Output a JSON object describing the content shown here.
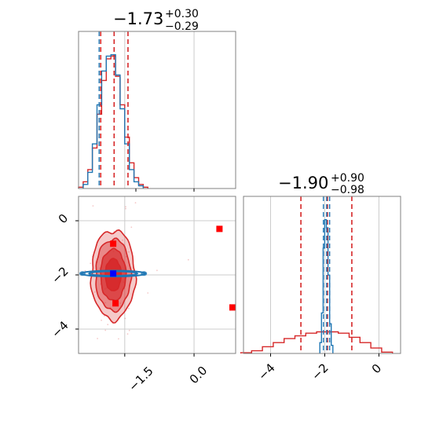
{
  "colors": {
    "posterior_a": "#d62728",
    "posterior_b": "#1f77b4",
    "truth_marker": "#ff0000",
    "mean_marker": "#0000ff",
    "grid": "#cccccc",
    "frame": "#808080"
  },
  "chart_data": [
    {
      "panel": "marginal-p1",
      "type": "histogram",
      "title_main": "−1.73",
      "title_sup": "+0.30",
      "title_sub": "−0.29",
      "xlim": [
        -2.5,
        0.9
      ],
      "grid": true,
      "quantile_lines": [
        -2.02,
        -1.73,
        -1.43
      ],
      "series": [
        {
          "color": "posterior_a",
          "bins": [
            {
              "x": -2.45,
              "y": 0.01
            },
            {
              "x": -2.35,
              "y": 0.05
            },
            {
              "x": -2.25,
              "y": 0.14
            },
            {
              "x": -2.15,
              "y": 0.3
            },
            {
              "x": -2.05,
              "y": 0.55
            },
            {
              "x": -1.95,
              "y": 0.8
            },
            {
              "x": -1.85,
              "y": 0.96
            },
            {
              "x": -1.75,
              "y": 0.98
            },
            {
              "x": -1.65,
              "y": 0.83
            },
            {
              "x": -1.55,
              "y": 0.62
            },
            {
              "x": -1.45,
              "y": 0.38
            },
            {
              "x": -1.35,
              "y": 0.19
            },
            {
              "x": -1.25,
              "y": 0.08
            },
            {
              "x": -1.15,
              "y": 0.03
            },
            {
              "x": -1.05,
              "y": 0.01
            }
          ]
        },
        {
          "color": "posterior_b",
          "bins": [
            {
              "x": -2.35,
              "y": 0.03
            },
            {
              "x": -2.25,
              "y": 0.12
            },
            {
              "x": -2.15,
              "y": 0.33
            },
            {
              "x": -2.05,
              "y": 0.62
            },
            {
              "x": -1.95,
              "y": 0.87
            },
            {
              "x": -1.85,
              "y": 0.98
            },
            {
              "x": -1.75,
              "y": 0.99
            },
            {
              "x": -1.65,
              "y": 0.84
            },
            {
              "x": -1.55,
              "y": 0.59
            },
            {
              "x": -1.45,
              "y": 0.33
            },
            {
              "x": -1.35,
              "y": 0.14
            },
            {
              "x": -1.25,
              "y": 0.05
            },
            {
              "x": -1.15,
              "y": 0.02
            }
          ]
        }
      ]
    },
    {
      "panel": "joint-p1-p2",
      "type": "contour",
      "xlim": [
        -2.5,
        0.9
      ],
      "ylim": [
        -4.9,
        0.9
      ],
      "grid": true,
      "x_ticks": [
        "−1.5",
        "0.0"
      ],
      "x_tick_values": [
        -1.5,
        0.0
      ],
      "y_ticks": [
        "0",
        "−2",
        "−4"
      ],
      "y_tick_values": [
        0,
        -2,
        -4
      ],
      "series": [
        {
          "color": "posterior_a",
          "center": [
            -1.75,
            -2.0
          ],
          "spread": [
            0.38,
            1.32
          ]
        },
        {
          "color": "posterior_b",
          "center": [
            -1.75,
            -1.95
          ],
          "spread": [
            0.7,
            0.11
          ]
        }
      ],
      "truth_points": [
        [
          -1.75,
          -0.85
        ],
        [
          0.55,
          -0.3
        ],
        [
          -1.7,
          -3.05
        ],
        [
          0.9,
          -3.2
        ]
      ],
      "mean_point": [
        -1.75,
        -1.95
      ]
    },
    {
      "panel": "marginal-p2",
      "type": "histogram",
      "title_main": "−1.90",
      "title_sup": "+0.90",
      "title_sub": "−0.98",
      "xlim": [
        -5.0,
        0.8
      ],
      "grid": true,
      "x_ticks": [
        "−4",
        "−2",
        "0"
      ],
      "x_tick_values": [
        -4,
        -2,
        0
      ],
      "quantile_lines_a": [
        -2.88,
        -1.9,
        -1.0
      ],
      "quantile_lines_b": [
        -2.05,
        -1.93,
        -1.82
      ],
      "series": [
        {
          "color": "posterior_a",
          "bins": [
            {
              "x": -4.9,
              "y": 0.005
            },
            {
              "x": -4.5,
              "y": 0.02
            },
            {
              "x": -4.1,
              "y": 0.05
            },
            {
              "x": -3.7,
              "y": 0.08
            },
            {
              "x": -3.3,
              "y": 0.11
            },
            {
              "x": -2.9,
              "y": 0.13
            },
            {
              "x": -2.5,
              "y": 0.15
            },
            {
              "x": -2.1,
              "y": 0.16
            },
            {
              "x": -1.7,
              "y": 0.16
            },
            {
              "x": -1.3,
              "y": 0.15
            },
            {
              "x": -0.9,
              "y": 0.12
            },
            {
              "x": -0.5,
              "y": 0.08
            },
            {
              "x": -0.1,
              "y": 0.04
            },
            {
              "x": 0.3,
              "y": 0.01
            }
          ]
        },
        {
          "color": "posterior_b",
          "bins": [
            {
              "x": -2.15,
              "y": 0.08
            },
            {
              "x": -2.09,
              "y": 0.3
            },
            {
              "x": -2.03,
              "y": 0.78
            },
            {
              "x": -1.97,
              "y": 0.99
            },
            {
              "x": -1.91,
              "y": 0.93
            },
            {
              "x": -1.85,
              "y": 0.58
            },
            {
              "x": -1.79,
              "y": 0.22
            },
            {
              "x": -1.73,
              "y": 0.06
            }
          ]
        }
      ]
    }
  ]
}
